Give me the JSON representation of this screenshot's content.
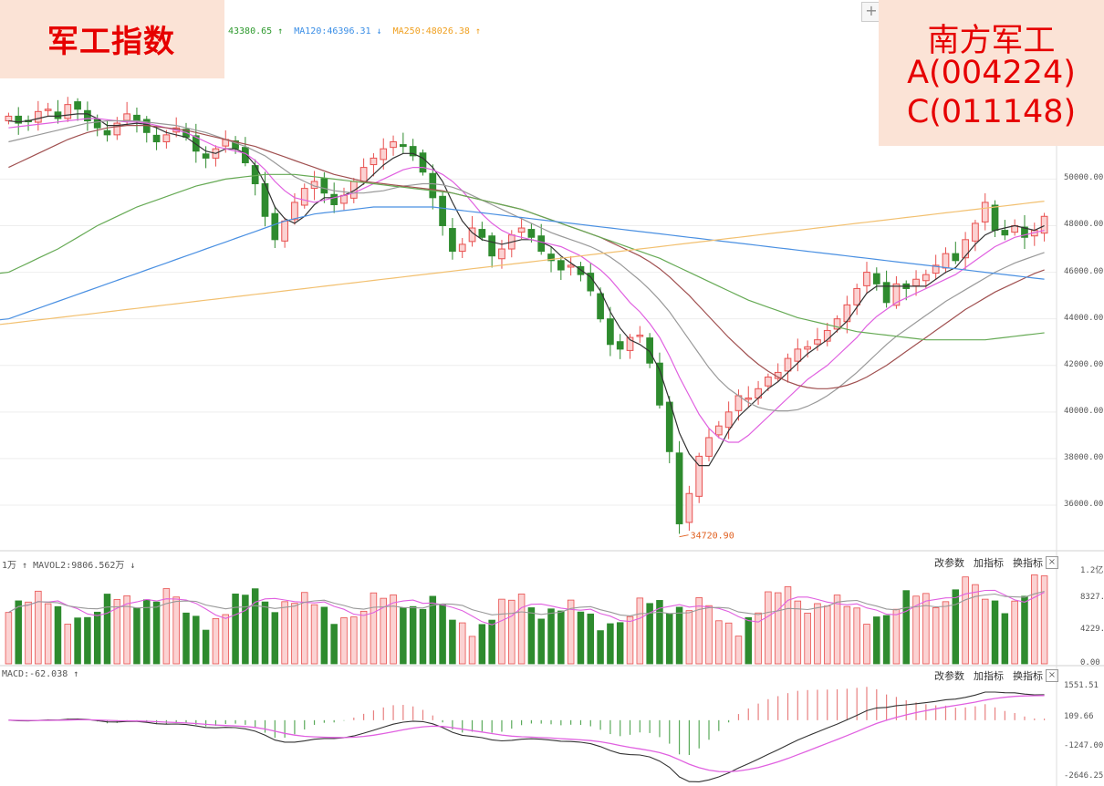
{
  "title": "军工指数",
  "fund": {
    "name": "南方军工",
    "code_a": "A(004224)",
    "code_c": "C(011148)"
  },
  "plus_label": "+",
  "ma_legend": [
    {
      "text": "43380.65 ↑",
      "color": "#2e9a2e"
    },
    {
      "text": "MA120:46396.31 ↓",
      "color": "#3a8ee6"
    },
    {
      "text": "MA250:48026.38 ↑",
      "color": "#f0a020"
    }
  ],
  "vol_label": "1万 ↑  MAVOL2:9806.562万 ↓",
  "macd_label": "MACD:-62.038 ↑",
  "indicator_buttons": [
    "改参数",
    "加指标",
    "换指标"
  ],
  "close_label": "×",
  "low_annotation": "34720.90",
  "colors": {
    "up": "#e8504f",
    "up_fill": "#fbd2d2",
    "down": "#2e8b2e",
    "ma5": "#333333",
    "ma10": "#e060e0",
    "ma20": "#999999",
    "ma30": "#a05050",
    "ma60": "#66aa55",
    "ma120": "#4a90e2",
    "ma250": "#f2c070"
  },
  "chart_data": {
    "type": "candlestick",
    "price_ticks": [
      "50000.00",
      "48000.00",
      "46000.00",
      "44000.00",
      "42000.00",
      "40000.00",
      "38000.00",
      "36000.00"
    ],
    "price_tick_values": [
      50000,
      48000,
      46000,
      44000,
      42000,
      40000,
      38000,
      36000
    ],
    "price_range": [
      34200,
      54400
    ],
    "vol_ticks": [
      "1.2亿",
      "8327.00",
      "4229.00",
      "0.00"
    ],
    "vol_tick_values": [
      12000,
      8327,
      4229,
      0
    ],
    "vol_range": [
      0,
      12000
    ],
    "macd_ticks": [
      "1551.51",
      "109.66",
      "-1247.00",
      "-2646.25"
    ],
    "macd_tick_values": [
      1551.51,
      109.66,
      -1247,
      -2646.25
    ],
    "macd_range": [
      -2646.25,
      1951.51
    ],
    "low": 34720.9,
    "series_close": [
      52700,
      52400,
      52500,
      52900,
      53000,
      52600,
      53200,
      53000,
      52500,
      52200,
      51900,
      52400,
      52800,
      52500,
      52000,
      51600,
      51900,
      52200,
      51800,
      51200,
      50900,
      51300,
      51700,
      51300,
      50700,
      49800,
      48400,
      47400,
      48200,
      49000,
      49600,
      49900,
      49400,
      48900,
      49300,
      49900,
      50500,
      50900,
      51300,
      51600,
      51400,
      51000,
      50300,
      49200,
      48000,
      46900,
      47200,
      47900,
      47500,
      46700,
      47000,
      47600,
      47900,
      47500,
      46900,
      46500,
      46100,
      46300,
      45900,
      45200,
      44000,
      42900,
      42700,
      43200,
      43300,
      42100,
      40300,
      38300,
      35200,
      36500,
      38100,
      38900,
      39400,
      40000,
      40700,
      40600,
      41000,
      41500,
      41700,
      42300,
      42700,
      42800,
      43100,
      43500,
      44000,
      44600,
      45300,
      46000,
      45500,
      44700,
      45500,
      45300,
      45700,
      45900,
      46300,
      46800,
      46500,
      47400,
      48100,
      49000,
      47800,
      47600,
      48000,
      47500,
      47800,
      48400
    ],
    "ma_series": {
      "ma5": [
        52500,
        52450,
        52500,
        52600,
        52700,
        52700,
        52750,
        52800,
        52800,
        52600,
        52300,
        52300,
        52350,
        52400,
        52350,
        52200,
        52000,
        51900,
        51800,
        51500,
        51200,
        51100,
        51300,
        51300,
        51100,
        50600,
        49800,
        48800,
        48300,
        48100,
        48400,
        48900,
        49200,
        49200,
        49300,
        49500,
        49800,
        50200,
        50600,
        50900,
        51100,
        51100,
        50900,
        50500,
        49900,
        49000,
        48200,
        47700,
        47400,
        47300,
        47200,
        47300,
        47400,
        47400,
        47300,
        47100,
        46700,
        46400,
        46100,
        45800,
        45200,
        44300,
        43600,
        43100,
        42900,
        42600,
        41800,
        40500,
        39100,
        38200,
        37700,
        37700,
        38400,
        39200,
        39800,
        40200,
        40600,
        41000,
        41300,
        41700,
        42100,
        42500,
        42800,
        43100,
        43500,
        43900,
        44500,
        45100,
        45400,
        45400,
        45400,
        45400,
        45400,
        45400,
        45700,
        46000,
        46200,
        46700,
        47200,
        47600,
        47800,
        47900,
        48000,
        47900,
        47800,
        48000
      ],
      "ma10": [
        52200,
        52250,
        52300,
        52350,
        52400,
        52450,
        52500,
        52550,
        52600,
        52600,
        52550,
        52500,
        52450,
        52450,
        52400,
        52300,
        52200,
        52100,
        52000,
        51800,
        51600,
        51400,
        51300,
        51200,
        51100,
        50800,
        50400,
        49900,
        49500,
        49200,
        49100,
        49000,
        49100,
        49200,
        49300,
        49400,
        49600,
        49800,
        50000,
        50200,
        50400,
        50500,
        50500,
        50400,
        50200,
        49900,
        49500,
        49000,
        48500,
        48100,
        47800,
        47600,
        47500,
        47400,
        47300,
        47200,
        47100,
        46900,
        46700,
        46400,
        46100,
        45700,
        45200,
        44700,
        44300,
        43800,
        43200,
        42400,
        41500,
        40700,
        39900,
        39300,
        38900,
        38700,
        38700,
        39000,
        39400,
        39800,
        40200,
        40600,
        41000,
        41400,
        41700,
        42000,
        42400,
        42800,
        43200,
        43700,
        44100,
        44400,
        44700,
        44900,
        45100,
        45300,
        45500,
        45700,
        45900,
        46200,
        46500,
        46800,
        47100,
        47300,
        47500,
        47600,
        47700,
        47800
      ],
      "ma20": [
        51600,
        51700,
        51800,
        51900,
        52000,
        52100,
        52200,
        52300,
        52400,
        52450,
        52500,
        52500,
        52500,
        52500,
        52450,
        52400,
        52350,
        52300,
        52200,
        52100,
        52000,
        51850,
        51700,
        51550,
        51400,
        51200,
        51000,
        50700,
        50400,
        50100,
        49900,
        49700,
        49600,
        49500,
        49450,
        49400,
        49400,
        49450,
        49500,
        49600,
        49700,
        49750,
        49800,
        49800,
        49750,
        49650,
        49500,
        49300,
        49100,
        48900,
        48700,
        48500,
        48300,
        48100,
        47900,
        47700,
        47550,
        47400,
        47250,
        47100,
        46900,
        46650,
        46350,
        46000,
        45650,
        45250,
        44800,
        44300,
        43700,
        43100,
        42500,
        41900,
        41400,
        41000,
        40700,
        40400,
        40200,
        40100,
        40050,
        40050,
        40100,
        40250,
        40450,
        40700,
        41000,
        41350,
        41700,
        42100,
        42500,
        42900,
        43250,
        43550,
        43850,
        44150,
        44450,
        44750,
        45000,
        45250,
        45500,
        45750,
        46000,
        46200,
        46400,
        46550,
        46700,
        46850
      ],
      "ma30": [
        50500,
        50700,
        50900,
        51100,
        51300,
        51500,
        51700,
        51850,
        52000,
        52100,
        52200,
        52250,
        52300,
        52300,
        52300,
        52250,
        52200,
        52150,
        52100,
        52000,
        51900,
        51800,
        51700,
        51600,
        51500,
        51400,
        51250,
        51100,
        50950,
        50800,
        50650,
        50500,
        50350,
        50200,
        50100,
        50000,
        49900,
        49850,
        49800,
        49750,
        49700,
        49650,
        49600,
        49550,
        49500,
        49400,
        49300,
        49200,
        49100,
        49000,
        48900,
        48800,
        48700,
        48550,
        48400,
        48250,
        48100,
        47950,
        47800,
        47650,
        47500,
        47300,
        47100,
        46900,
        46700,
        46450,
        46150,
        45800,
        45400,
        45000,
        44550,
        44100,
        43650,
        43200,
        42800,
        42400,
        42050,
        41750,
        41500,
        41300,
        41150,
        41050,
        41000,
        41000,
        41050,
        41150,
        41300,
        41500,
        41750,
        42000,
        42300,
        42600,
        42900,
        43200,
        43500,
        43800,
        44100,
        44400,
        44650,
        44900,
        45150,
        45350,
        45550,
        45750,
        45950,
        46100
      ],
      "ma60": [
        46000,
        46200,
        46400,
        46600,
        46800,
        47000,
        47250,
        47500,
        47750,
        48000,
        48200,
        48400,
        48600,
        48800,
        48950,
        49100,
        49250,
        49400,
        49550,
        49700,
        49800,
        49900,
        50000,
        50050,
        50100,
        50150,
        50200,
        50200,
        50200,
        50200,
        50150,
        50100,
        50050,
        50000,
        49950,
        49900,
        49850,
        49800,
        49750,
        49700,
        49650,
        49600,
        49550,
        49500,
        49450,
        49400,
        49300,
        49200,
        49100,
        49000,
        48900,
        48800,
        48700,
        48550,
        48400,
        48250,
        48100,
        47950,
        47800,
        47650,
        47500,
        47350,
        47200,
        47050,
        46900,
        46750,
        46600,
        46400,
        46200,
        46000,
        45800,
        45600,
        45400,
        45200,
        45000,
        44800,
        44650,
        44500,
        44350,
        44200,
        44050,
        43950,
        43850,
        43750,
        43650,
        43550,
        43450,
        43400,
        43350,
        43300,
        43250,
        43200,
        43150,
        43100,
        43100,
        43100,
        43100,
        43100,
        43100,
        43100,
        43150,
        43200,
        43250,
        43300,
        43350,
        43400
      ],
      "ma120": [
        44000,
        44150,
        44300,
        44450,
        44600,
        44750,
        44900,
        45050,
        45200,
        45350,
        45500,
        45650,
        45800,
        45950,
        46100,
        46250,
        46400,
        46550,
        46700,
        46850,
        47000,
        47150,
        47300,
        47450,
        47600,
        47750,
        47900,
        48050,
        48200,
        48300,
        48400,
        48500,
        48550,
        48600,
        48650,
        48700,
        48750,
        48800,
        48800,
        48800,
        48800,
        48800,
        48800,
        48800,
        48750,
        48700,
        48650,
        48600,
        48550,
        48500,
        48450,
        48400,
        48350,
        48300,
        48250,
        48200,
        48150,
        48100,
        48050,
        48000,
        47950,
        47900,
        47850,
        47800,
        47750,
        47700,
        47650,
        47600,
        47550,
        47500,
        47450,
        47400,
        47350,
        47300,
        47250,
        47200,
        47150,
        47100,
        47050,
        47000,
        46950,
        46900,
        46850,
        46800,
        46750,
        46700,
        46650,
        46600,
        46550,
        46500,
        46450,
        46400,
        46350,
        46300,
        46250,
        46200,
        46150,
        46100,
        46050,
        46000,
        45950,
        45900,
        45850,
        45800,
        45750,
        45700
      ],
      "ma250": [
        43800,
        43850,
        43900,
        43950,
        44000,
        44050,
        44100,
        44150,
        44200,
        44250,
        44300,
        44350,
        44400,
        44450,
        44500,
        44550,
        44600,
        44650,
        44700,
        44750,
        44800,
        44850,
        44900,
        44950,
        45000,
        45050,
        45100,
        45150,
        45200,
        45250,
        45300,
        45350,
        45400,
        45450,
        45500,
        45550,
        45600,
        45650,
        45700,
        45750,
        45800,
        45850,
        45900,
        45950,
        46000,
        46050,
        46100,
        46150,
        46200,
        46250,
        46300,
        46350,
        46400,
        46450,
        46500,
        46550,
        46600,
        46650,
        46700,
        46750,
        46800,
        46850,
        46900,
        46950,
        47000,
        47050,
        47100,
        47150,
        47200,
        47250,
        47300,
        47350,
        47400,
        47450,
        47500,
        47550,
        47600,
        47650,
        47700,
        47750,
        47800,
        47850,
        47900,
        47950,
        48000,
        48050,
        48100,
        48150,
        48200,
        48250,
        48300,
        48350,
        48400,
        48450,
        48500,
        48550,
        48600,
        48650,
        48700,
        48750,
        48800,
        48850,
        48900,
        48950,
        49000,
        49050
      ]
    }
  }
}
